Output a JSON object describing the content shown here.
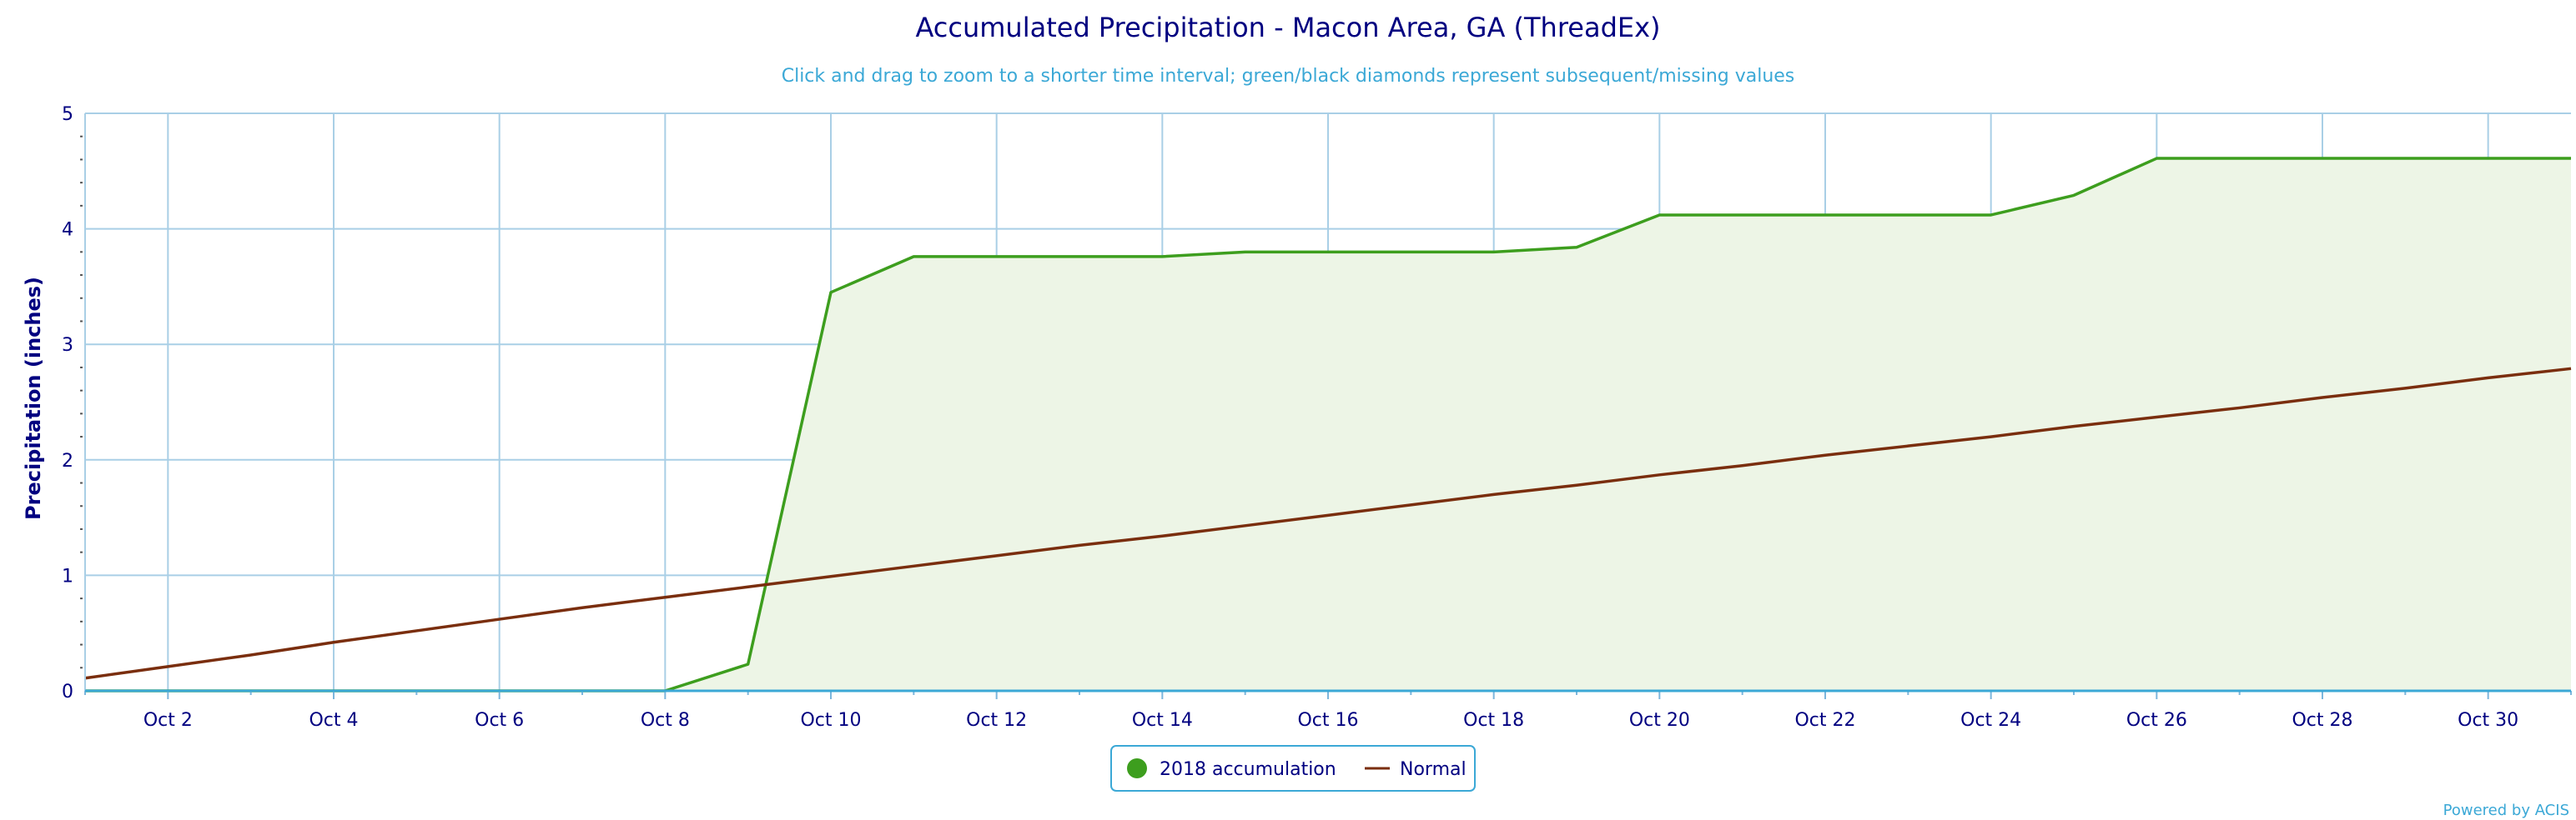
{
  "chart_data": {
    "type": "line",
    "title": "Accumulated Precipitation - Macon Area, GA (ThreadEx)",
    "subtitle": "Click and drag to zoom to a shorter time interval; green/black diamonds represent subsequent/missing values",
    "ylabel": "Precipitation (inches)",
    "xlabel": "",
    "ylim": [
      0,
      5
    ],
    "yticks": [
      0,
      1,
      2,
      3,
      4,
      5
    ],
    "xlim": [
      1,
      31
    ],
    "xticks": [
      2,
      4,
      6,
      8,
      10,
      12,
      14,
      16,
      18,
      20,
      22,
      24,
      26,
      28,
      30
    ],
    "xtick_labels": [
      "Oct 2",
      "Oct 4",
      "Oct 6",
      "Oct 8",
      "Oct 10",
      "Oct 12",
      "Oct 14",
      "Oct 16",
      "Oct 18",
      "Oct 20",
      "Oct 22",
      "Oct 24",
      "Oct 26",
      "Oct 28",
      "Oct 30"
    ],
    "grid": true,
    "legend_position": "bottom-center",
    "x": [
      1,
      2,
      3,
      4,
      5,
      6,
      7,
      8,
      9,
      10,
      11,
      12,
      13,
      14,
      15,
      16,
      17,
      18,
      19,
      20,
      21,
      22,
      23,
      24,
      25,
      26,
      27,
      28,
      29,
      30,
      31
    ],
    "series": [
      {
        "name": "2018 accumulation",
        "color": "#3d9e1e",
        "fill": "#edf5e6",
        "marker": "circle",
        "values": [
          0,
          0,
          0,
          0,
          0,
          0,
          0,
          0,
          0.23,
          3.45,
          3.76,
          3.76,
          3.76,
          3.76,
          3.8,
          3.8,
          3.8,
          3.8,
          3.84,
          4.12,
          4.12,
          4.12,
          4.12,
          4.12,
          4.29,
          4.61,
          4.61,
          4.61,
          4.61,
          4.61,
          4.61
        ]
      },
      {
        "name": "Normal",
        "color": "#7a2e0e",
        "marker": "line",
        "values": [
          0.11,
          0.21,
          0.31,
          0.42,
          0.52,
          0.62,
          0.72,
          0.81,
          0.9,
          0.99,
          1.08,
          1.17,
          1.26,
          1.34,
          1.43,
          1.52,
          1.61,
          1.7,
          1.78,
          1.87,
          1.95,
          2.04,
          2.12,
          2.2,
          2.29,
          2.37,
          2.45,
          2.54,
          2.62,
          2.71,
          2.79
        ]
      }
    ]
  },
  "credit": "Powered by ACIS"
}
